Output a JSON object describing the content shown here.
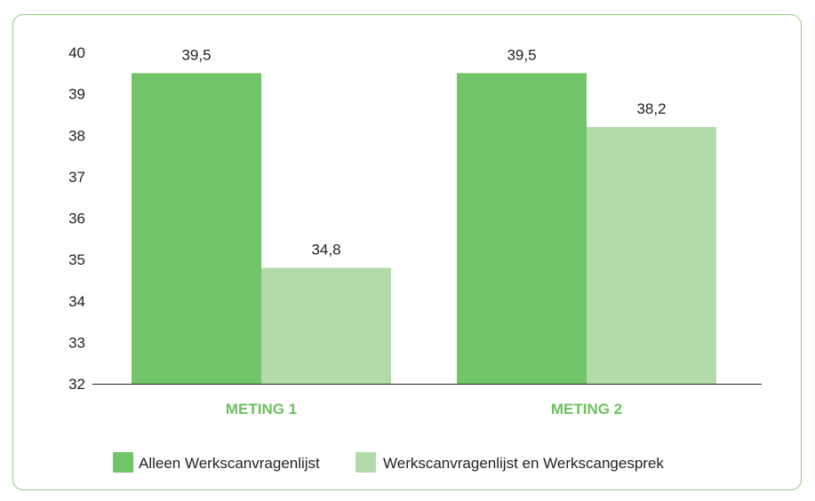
{
  "chart_data": {
    "type": "bar",
    "categories": [
      "METING 1",
      "METING 2"
    ],
    "series": [
      {
        "name": "Alleen Werkscanvragenlijst",
        "values": [
          39.5,
          39.5
        ],
        "labels": [
          "39,5",
          "39,5"
        ],
        "color": "#72c468"
      },
      {
        "name": "Werkscanvragenlijst en Werkscangesprek",
        "values": [
          34.8,
          38.2
        ],
        "labels": [
          "34,8",
          "38,2"
        ],
        "color": "#b3dba9"
      }
    ],
    "yticks": [
      32,
      33,
      34,
      35,
      36,
      37,
      38,
      39,
      40
    ],
    "ylim": [
      32,
      40
    ],
    "grid": false,
    "legend_position": "bottom",
    "colors": {
      "frame": "#8ccf7d",
      "category_text": "#6cc15f",
      "axis": "#222222"
    }
  }
}
